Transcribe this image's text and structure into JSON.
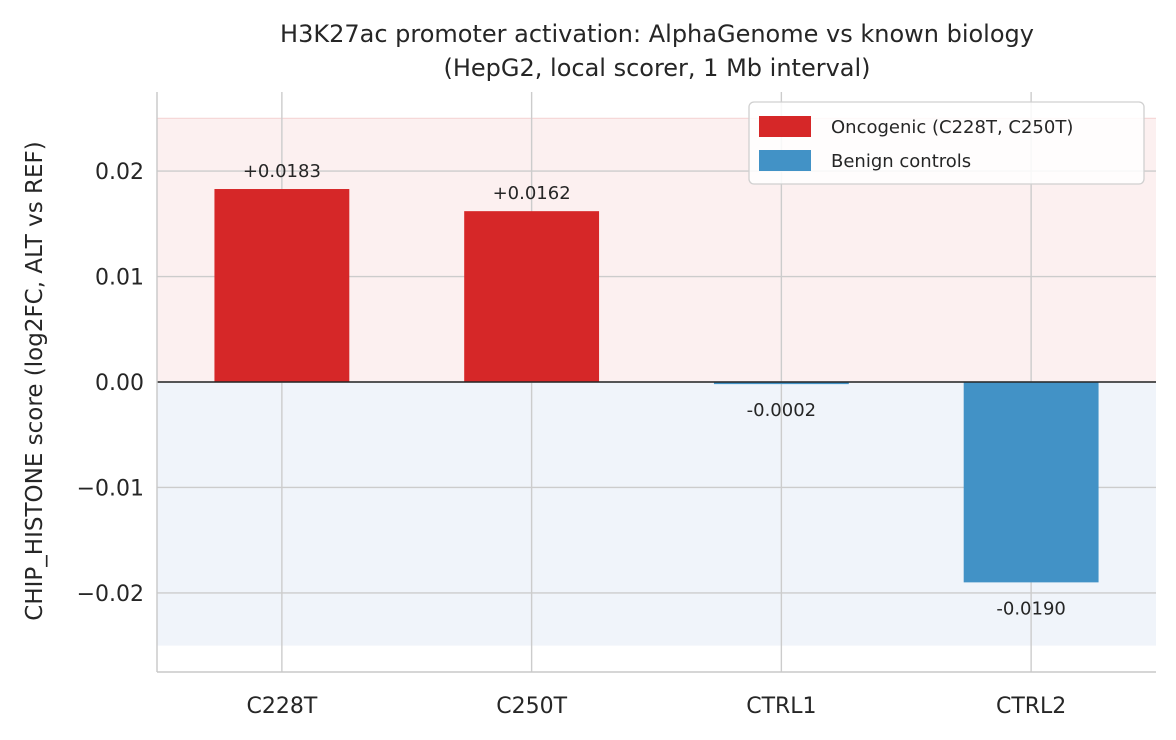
{
  "chart_data": {
    "type": "bar",
    "title": "H3K27ac promoter activation: AlphaGenome vs known biology",
    "subtitle": "(HepG2, local scorer, 1 Mb interval)",
    "xlabel": "",
    "ylabel": "CHIP_HISTONE score (log2FC, ALT vs REF)",
    "categories": [
      "C228T",
      "C250T",
      "CTRL1",
      "CTRL2"
    ],
    "values": [
      0.0183,
      0.0162,
      -0.0002,
      -0.019
    ],
    "value_labels": [
      "+0.0183",
      "+0.0162",
      "-0.0002",
      "-0.0190"
    ],
    "bar_groups": [
      "oncogenic",
      "oncogenic",
      "benign",
      "benign"
    ],
    "ylim": [
      -0.0275,
      0.0275
    ],
    "yticks": [
      -0.02,
      -0.01,
      0.0,
      0.01,
      0.02
    ],
    "ytick_labels": [
      "−0.02",
      "−0.01",
      "0.00",
      "0.01",
      "0.02"
    ],
    "positive_band": [
      0,
      0.025
    ],
    "negative_band": [
      -0.025,
      0
    ],
    "grid": true,
    "legend": {
      "placement": "top-right",
      "entries": [
        {
          "label": "Oncogenic (C228T, C250T)",
          "color": "#d62728",
          "group": "oncogenic"
        },
        {
          "label": "Benign controls",
          "color": "#4292c6",
          "group": "benign"
        }
      ]
    },
    "colors": {
      "oncogenic": "#d62728",
      "benign": "#4292c6",
      "positive_band": "#fcf0f0",
      "negative_band": "#f0f4fa",
      "zero_line": "#262626"
    }
  }
}
